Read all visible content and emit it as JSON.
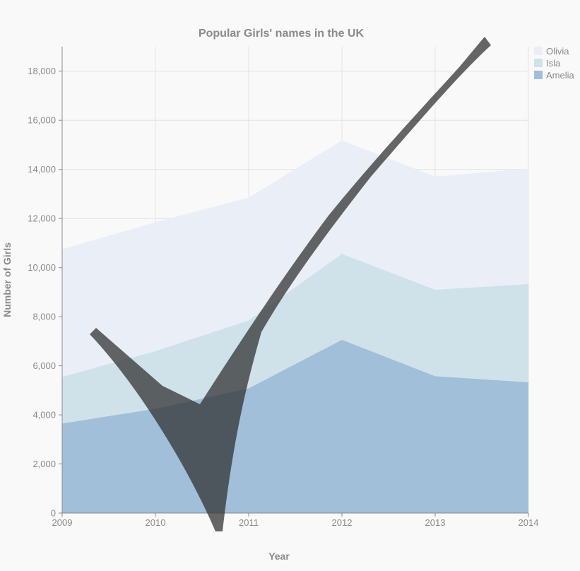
{
  "chart_data": {
    "type": "area",
    "stacked": true,
    "title": "Popular Girls' names in the UK",
    "xlabel": "Year",
    "ylabel": "Number of Girls",
    "x": [
      2009,
      2010,
      2011,
      2012,
      2013,
      2014
    ],
    "x_tick_labels": [
      "2009",
      "2010",
      "2011",
      "2012",
      "2013",
      "2014"
    ],
    "ylim": [
      0,
      19000
    ],
    "y_ticks": [
      0,
      2000,
      4000,
      6000,
      8000,
      10000,
      12000,
      14000,
      16000,
      18000
    ],
    "y_tick_labels": [
      "0",
      "2,000",
      "4,000",
      "6,000",
      "8,000",
      "10,000",
      "12,000",
      "14,000",
      "16,000",
      "18,000"
    ],
    "grid": true,
    "legend_position": "top-right",
    "series": [
      {
        "name": "Amelia",
        "color": "#a1bfd9",
        "values": [
          3650,
          4250,
          5080,
          7060,
          5580,
          5330
        ]
      },
      {
        "name": "Isla",
        "color": "#cfe2ea",
        "values": [
          1900,
          2350,
          2770,
          3500,
          3520,
          4000
        ]
      },
      {
        "name": "Olivia",
        "color": "#eaeff7",
        "values": [
          5200,
          5250,
          5000,
          4620,
          4610,
          4700
        ]
      }
    ],
    "legend_order": [
      "Olivia",
      "Isla",
      "Amelia"
    ],
    "overlay": {
      "type": "checkmark",
      "color": "#333333",
      "opacity": 0.75
    }
  }
}
